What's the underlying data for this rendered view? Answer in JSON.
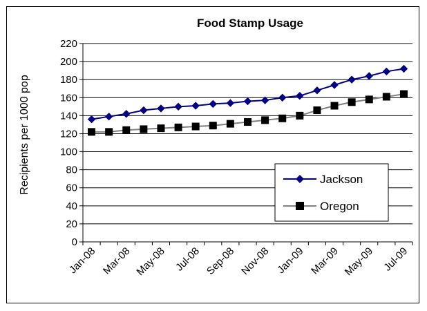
{
  "chart_data": {
    "type": "line",
    "title": "Food Stamp Usage",
    "xlabel": "",
    "ylabel": "Recipients per 1000 pop",
    "ylim": [
      0,
      220
    ],
    "ytick_step": 20,
    "yticks": [
      "0",
      "20",
      "40",
      "60",
      "80",
      "100",
      "120",
      "140",
      "160",
      "180",
      "200",
      "220"
    ],
    "x": [
      "Jan-08",
      "Feb-08",
      "Mar-08",
      "Apr-08",
      "May-08",
      "Jun-08",
      "Jul-08",
      "Aug-08",
      "Sep-08",
      "Oct-08",
      "Nov-08",
      "Dec-08",
      "Jan-09",
      "Feb-09",
      "Mar-09",
      "Apr-09",
      "May-09",
      "Jun-09",
      "Jul-09"
    ],
    "xtick_labels": [
      "Jan-08",
      "Mar-08",
      "May-08",
      "Jul-08",
      "Sep-08",
      "Nov-08",
      "Jan-09",
      "Mar-09",
      "May-09",
      "Jul-09"
    ],
    "grid": true,
    "legend_position": "bottom-right",
    "series": [
      {
        "name": "Jackson",
        "color": "#000080",
        "marker": "diamond",
        "values": [
          136,
          139,
          142,
          146,
          148,
          150,
          151,
          153,
          154,
          156,
          157,
          160,
          162,
          168,
          174,
          180,
          184,
          189,
          192
        ]
      },
      {
        "name": "Oregon",
        "color": "#000000",
        "line_color": "#808080",
        "marker": "square",
        "values": [
          122,
          122,
          124,
          125,
          126,
          127,
          128,
          129,
          131,
          133,
          135,
          137,
          140,
          146,
          151,
          155,
          158,
          161,
          164
        ]
      }
    ]
  }
}
